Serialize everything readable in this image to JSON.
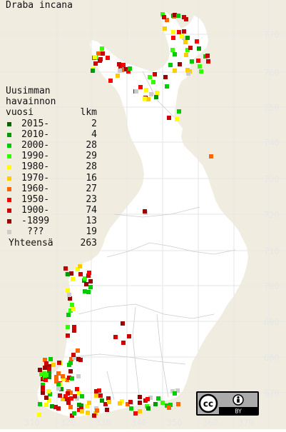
{
  "title": "Draba incana",
  "legend": {
    "heading_lines": [
      "Uusimman",
      "havainnon",
      "vuosi"
    ],
    "count_header": "lkm",
    "rows": [
      {
        "label": "2015-",
        "count": "2",
        "color": "#006600"
      },
      {
        "label": "2010-",
        "count": "4",
        "color": "#009900"
      },
      {
        "label": "2000-",
        "count": "28",
        "color": "#00cc00"
      },
      {
        "label": "1990-",
        "count": "29",
        "color": "#33ff00"
      },
      {
        "label": "1980-",
        "count": "28",
        "color": "#ffff00"
      },
      {
        "label": "1970-",
        "count": "16",
        "color": "#ffcc00"
      },
      {
        "label": "1960-",
        "count": "27",
        "color": "#ff6600"
      },
      {
        "label": "1950-",
        "count": "23",
        "color": "#ff0000"
      },
      {
        "label": "1900-",
        "count": "74",
        "color": "#cc0000"
      },
      {
        "label": "-1899",
        "count": "13",
        "color": "#990000"
      },
      {
        "label": "???",
        "count": "19",
        "color": "#cccccc"
      }
    ],
    "total_label": "Yhteensä",
    "total_count": "263"
  },
  "grid_labels": {
    "northing": [
      "770",
      "760",
      "750",
      "740",
      "730",
      "720",
      "710",
      "700",
      "690",
      "680",
      "670"
    ],
    "easting": [
      "310",
      "320",
      "330",
      "340",
      "350",
      "360",
      "370"
    ]
  },
  "license_badge": {
    "cc": "cc",
    "by": "BY"
  },
  "colors": {
    "background": "#f0ede0",
    "land": "#ffffff",
    "grid": "#e6e6e6",
    "borders": "#cccccc"
  }
}
